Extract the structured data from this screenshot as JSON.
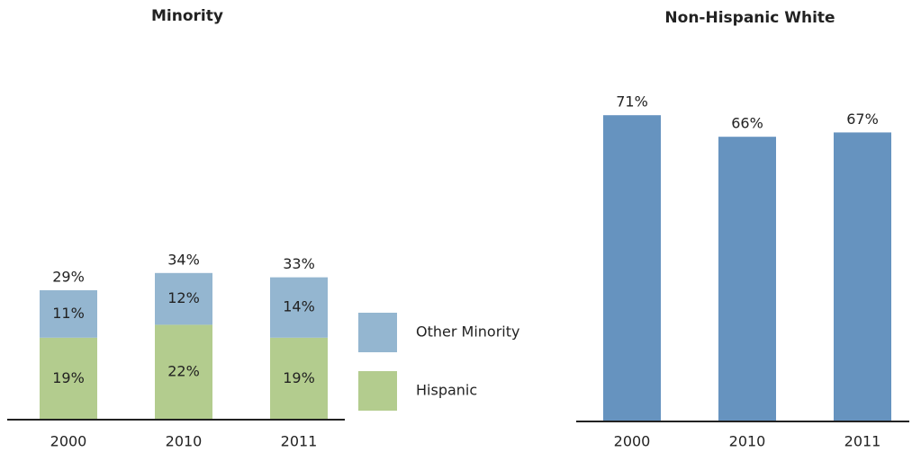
{
  "chart_data": [
    {
      "type": "stacked_bar",
      "title": "Minority",
      "categories": [
        "2000",
        "2010",
        "2011"
      ],
      "series": [
        {
          "name": "Hispanic",
          "color": "#b3cc8e",
          "values": [
            19,
            22,
            19
          ],
          "value_labels": [
            "19%",
            "22%",
            "19%"
          ]
        },
        {
          "name": "Other Minority",
          "color": "#94b6d0",
          "values": [
            11,
            12,
            14
          ],
          "value_labels": [
            "11%",
            "12%",
            "14%"
          ]
        }
      ],
      "total_labels": [
        "29%",
        "34%",
        "33%"
      ]
    },
    {
      "type": "bar",
      "title": "Non-Hispanic White",
      "categories": [
        "2000",
        "2010",
        "2011"
      ],
      "color": "#6693bf",
      "values": [
        71,
        66,
        67
      ],
      "value_labels": [
        "71%",
        "66%",
        "67%"
      ]
    }
  ]
}
